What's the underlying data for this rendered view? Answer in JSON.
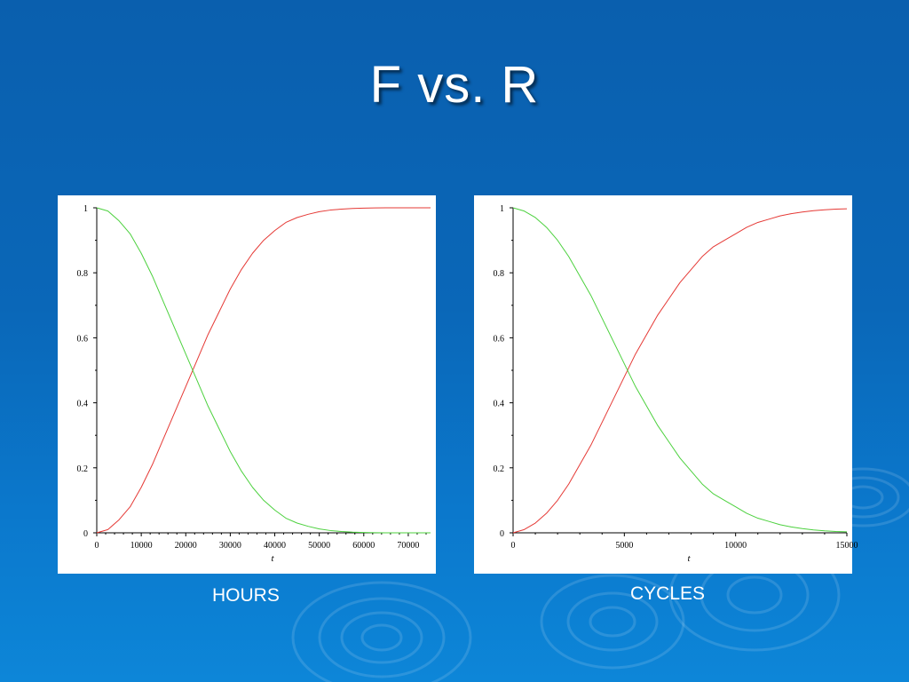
{
  "slide": {
    "title": "F vs. R",
    "captions": [
      "HOURS",
      "CYCLES"
    ]
  },
  "chart_data": [
    {
      "type": "line",
      "xlabel": "t",
      "ylabel": "",
      "xlim": [
        0,
        75000
      ],
      "ylim": [
        0,
        1
      ],
      "xticks": [
        0,
        10000,
        20000,
        30000,
        40000,
        50000,
        60000,
        70000
      ],
      "yticks": [
        0,
        0.2,
        0.4,
        0.6,
        0.8,
        1
      ],
      "xtick_labels": [
        "0",
        "10000",
        "20000",
        "30000",
        "40000",
        "50000",
        "60000",
        "70000"
      ],
      "ytick_labels": [
        "0",
        "0.2",
        "0.4",
        "0.6",
        "0.8",
        "1"
      ],
      "series": [
        {
          "color": "#e53935",
          "x": [
            0,
            2500,
            5000,
            7500,
            10000,
            12500,
            15000,
            17500,
            20000,
            22500,
            25000,
            27500,
            30000,
            32500,
            35000,
            37500,
            40000,
            42500,
            45000,
            47500,
            50000,
            52500,
            55000,
            57500,
            60000,
            62500,
            65000,
            67500,
            70000,
            72500,
            75000
          ],
          "values": [
            0,
            0.01,
            0.04,
            0.08,
            0.14,
            0.21,
            0.29,
            0.37,
            0.45,
            0.53,
            0.61,
            0.68,
            0.75,
            0.81,
            0.86,
            0.9,
            0.93,
            0.955,
            0.97,
            0.98,
            0.988,
            0.993,
            0.996,
            0.998,
            0.999,
            0.9995,
            1,
            1,
            1,
            1,
            1
          ]
        },
        {
          "color": "#4cd13e",
          "x": [
            0,
            2500,
            5000,
            7500,
            10000,
            12500,
            15000,
            17500,
            20000,
            22500,
            25000,
            27500,
            30000,
            32500,
            35000,
            37500,
            40000,
            42500,
            45000,
            47500,
            50000,
            52500,
            55000,
            57500,
            60000,
            62500,
            65000,
            67500,
            70000,
            72500,
            75000
          ],
          "values": [
            1,
            0.99,
            0.96,
            0.92,
            0.86,
            0.79,
            0.71,
            0.63,
            0.55,
            0.47,
            0.39,
            0.32,
            0.25,
            0.19,
            0.14,
            0.1,
            0.07,
            0.045,
            0.03,
            0.02,
            0.012,
            0.007,
            0.004,
            0.002,
            0.001,
            0.0005,
            0,
            0,
            0,
            0,
            0
          ]
        }
      ]
    },
    {
      "type": "line",
      "xlabel": "t",
      "ylabel": "",
      "xlim": [
        0,
        15000
      ],
      "ylim": [
        0,
        1
      ],
      "xticks": [
        0,
        5000,
        10000,
        15000
      ],
      "yticks": [
        0,
        0.2,
        0.4,
        0.6,
        0.8,
        1
      ],
      "xtick_labels": [
        "0",
        "5000",
        "10000",
        "15000"
      ],
      "ytick_labels": [
        "0",
        "0.2",
        "0.4",
        "0.6",
        "0.8",
        "1"
      ],
      "series": [
        {
          "color": "#e53935",
          "x": [
            0,
            500,
            1000,
            1500,
            2000,
            2500,
            3000,
            3500,
            4000,
            4500,
            5000,
            5500,
            6000,
            6500,
            7000,
            7500,
            8000,
            8500,
            9000,
            9500,
            10000,
            10500,
            11000,
            11500,
            12000,
            12500,
            13000,
            13500,
            14000,
            14500,
            15000
          ],
          "values": [
            0,
            0.01,
            0.03,
            0.06,
            0.1,
            0.15,
            0.21,
            0.27,
            0.34,
            0.41,
            0.48,
            0.55,
            0.61,
            0.67,
            0.72,
            0.77,
            0.81,
            0.85,
            0.88,
            0.9,
            0.92,
            0.94,
            0.955,
            0.965,
            0.975,
            0.982,
            0.987,
            0.991,
            0.994,
            0.996,
            0.997
          ]
        },
        {
          "color": "#4cd13e",
          "x": [
            0,
            500,
            1000,
            1500,
            2000,
            2500,
            3000,
            3500,
            4000,
            4500,
            5000,
            5500,
            6000,
            6500,
            7000,
            7500,
            8000,
            8500,
            9000,
            9500,
            10000,
            10500,
            11000,
            11500,
            12000,
            12500,
            13000,
            13500,
            14000,
            14500,
            15000
          ],
          "values": [
            1,
            0.99,
            0.97,
            0.94,
            0.9,
            0.85,
            0.79,
            0.73,
            0.66,
            0.59,
            0.52,
            0.45,
            0.39,
            0.33,
            0.28,
            0.23,
            0.19,
            0.15,
            0.12,
            0.1,
            0.08,
            0.06,
            0.045,
            0.035,
            0.025,
            0.018,
            0.013,
            0.009,
            0.006,
            0.004,
            0.003
          ]
        }
      ]
    }
  ]
}
